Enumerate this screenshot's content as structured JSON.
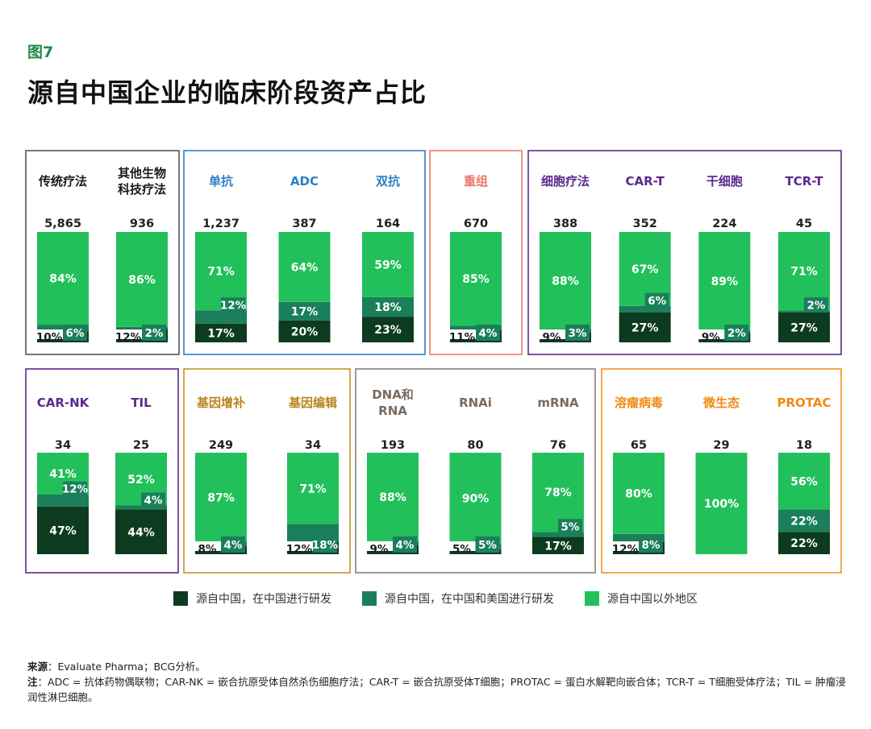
{
  "figure_label": "图7",
  "title": "源自中国企业的临床阶段资产占比",
  "legend": [
    {
      "label": "源自中国，在中国进行研发",
      "color": "#0d3b1f"
    },
    {
      "label": "源自中国，在中国和美国进行研发",
      "color": "#1a7f5a"
    },
    {
      "label": "源自中国以外地区",
      "color": "#22c05a"
    }
  ],
  "colors": {
    "china_only": "#0d3b1f",
    "china_us": "#1a7f5a",
    "outside": "#22c05a",
    "blank_text": "#ffffff"
  },
  "chart_data": {
    "type": "bar",
    "stacked": true,
    "title": "源自中国企业的临床阶段资产占比",
    "series_names": [
      "源自中国，在中国进行研发",
      "源自中国，在中国和美国进行研发",
      "源自中国以外地区"
    ],
    "groups": [
      {
        "row": 0,
        "border": "#555555",
        "label_color": "#1a1a1a",
        "bars": [
          {
            "name": [
              "传统疗法"
            ],
            "total": "5,865",
            "values": [
              10,
              6,
              84
            ]
          },
          {
            "name": [
              "其他生物",
              "科技疗法"
            ],
            "total": "936",
            "values": [
              12,
              2,
              86
            ]
          }
        ]
      },
      {
        "row": 0,
        "border": "#2f7fc9",
        "label_color": "#2f7fc9",
        "bars": [
          {
            "name": [
              "单抗"
            ],
            "total": "1,237",
            "values": [
              17,
              12,
              71
            ]
          },
          {
            "name": [
              "ADC"
            ],
            "total": "387",
            "values": [
              20,
              17,
              64
            ]
          },
          {
            "name": [
              "双抗"
            ],
            "total": "164",
            "values": [
              23,
              18,
              59
            ]
          }
        ]
      },
      {
        "row": 0,
        "border": "#e8786a",
        "label_color": "#e8786a",
        "bars": [
          {
            "name": [
              "重组"
            ],
            "total": "670",
            "values": [
              11,
              4,
              85
            ]
          }
        ]
      },
      {
        "row": 0,
        "border": "#5b2a8c",
        "label_color": "#5b2a8c",
        "bars": [
          {
            "name": [
              "细胞疗法"
            ],
            "total": "388",
            "values": [
              9,
              3,
              88
            ]
          },
          {
            "name": [
              "CAR-T"
            ],
            "total": "352",
            "values": [
              27,
              6,
              67
            ]
          },
          {
            "name": [
              "干细胞"
            ],
            "total": "224",
            "values": [
              9,
              2,
              89
            ]
          },
          {
            "name": [
              "TCR-T"
            ],
            "total": "45",
            "values": [
              27,
              2,
              71
            ]
          }
        ]
      },
      {
        "row": 1,
        "border": "#5b2a8c",
        "label_color": "#5b2a8c",
        "bars": [
          {
            "name": [
              "CAR-NK"
            ],
            "total": "34",
            "values": [
              47,
              12,
              41
            ]
          },
          {
            "name": [
              "TIL"
            ],
            "total": "25",
            "values": [
              44,
              4,
              52
            ]
          }
        ]
      },
      {
        "row": 1,
        "border": "#c8952a",
        "label_color": "#b8861c",
        "bars": [
          {
            "name": [
              "基因增补"
            ],
            "total": "249",
            "values": [
              8,
              4,
              87
            ]
          },
          {
            "name": [
              "基因编辑"
            ],
            "total": "34",
            "values": [
              12,
              18,
              71
            ]
          }
        ]
      },
      {
        "row": 1,
        "border": "#8a7f78",
        "label_color": "#7a6a60",
        "bars": [
          {
            "name": [
              "DNA和",
              "RNA"
            ],
            "total": "193",
            "values": [
              9,
              4,
              88
            ]
          },
          {
            "name": [
              "RNAi"
            ],
            "total": "80",
            "values": [
              5,
              5,
              90
            ]
          },
          {
            "name": [
              "mRNA"
            ],
            "total": "76",
            "values": [
              17,
              5,
              78
            ]
          }
        ]
      },
      {
        "row": 1,
        "border": "#f0941e",
        "label_color": "#ef8a14",
        "bars": [
          {
            "name": [
              "溶瘤病毒"
            ],
            "total": "65",
            "values": [
              12,
              8,
              80
            ]
          },
          {
            "name": [
              "微生态"
            ],
            "total": "29",
            "values": [
              0,
              0,
              100
            ]
          },
          {
            "name": [
              "PROTAC"
            ],
            "total": "18",
            "values": [
              22,
              22,
              56
            ]
          }
        ]
      }
    ]
  },
  "notes": {
    "source_label": "来源",
    "source_text": "：Evaluate Pharma；BCG分析。",
    "note_label": "注",
    "note_text": "：ADC = 抗体药物偶联物；CAR-NK = 嵌合抗原受体自然杀伤细胞疗法；CAR-T = 嵌合抗原受体T细胞；PROTAC = 蛋白水解靶向嵌合体；TCR-T = T细胞受体疗法；TIL = 肿瘤浸润性淋巴细胞。"
  }
}
